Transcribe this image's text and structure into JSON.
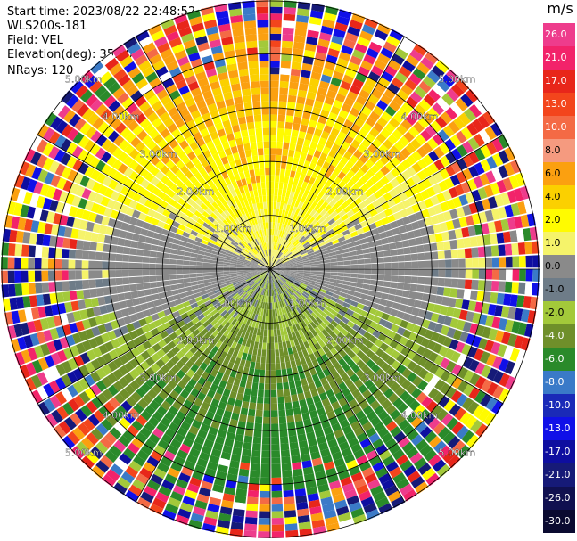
{
  "header": {
    "start_time": "Start time: 2023/08/22 22:48:52",
    "site": "WLS200s-181",
    "field": "Field: VEL",
    "elevation": "Elevation(deg): 35.30",
    "nrays": "NRays: 120"
  },
  "chart_data": {
    "type": "heatmap",
    "projection": "polar-ppi",
    "range_rings": [
      "1.00km",
      "2.00km",
      "3.00km",
      "4.00km",
      "5.00km"
    ],
    "max_range_km": 5.0,
    "n_rays": 120,
    "colorbar": {
      "title": "m/s",
      "levels": [
        {
          "label": "26.0",
          "color": "#ee3c8c"
        },
        {
          "label": "21.0",
          "color": "#f2236a"
        },
        {
          "label": "17.0",
          "color": "#e8261a"
        },
        {
          "label": "13.0",
          "color": "#f3451c"
        },
        {
          "label": "10.0",
          "color": "#f46a45"
        },
        {
          "label": "8.0",
          "color": "#f59a7f"
        },
        {
          "label": "6.0",
          "color": "#fba010"
        },
        {
          "label": "4.0",
          "color": "#fbd000"
        },
        {
          "label": "2.0",
          "color": "#fffb00"
        },
        {
          "label": "1.0",
          "color": "#f5f36a"
        },
        {
          "label": "0.0",
          "color": "#8a8a8a"
        },
        {
          "label": "-1.0",
          "color": "#6e7c88"
        },
        {
          "label": "-2.0",
          "color": "#a3c93a"
        },
        {
          "label": "-4.0",
          "color": "#6f8f2a"
        },
        {
          "label": "-6.0",
          "color": "#2a8a2a"
        },
        {
          "label": "-8.0",
          "color": "#3a7ac8"
        },
        {
          "label": "-10.0",
          "color": "#1a2ab8"
        },
        {
          "label": "-13.0",
          "color": "#1010e8"
        },
        {
          "label": "-17.0",
          "color": "#0e0ea0"
        },
        {
          "label": "-21.0",
          "color": "#161a78"
        },
        {
          "label": "-26.0",
          "color": "#101050"
        },
        {
          "label": "-30.0",
          "color": "#0a0a30"
        }
      ]
    }
  }
}
